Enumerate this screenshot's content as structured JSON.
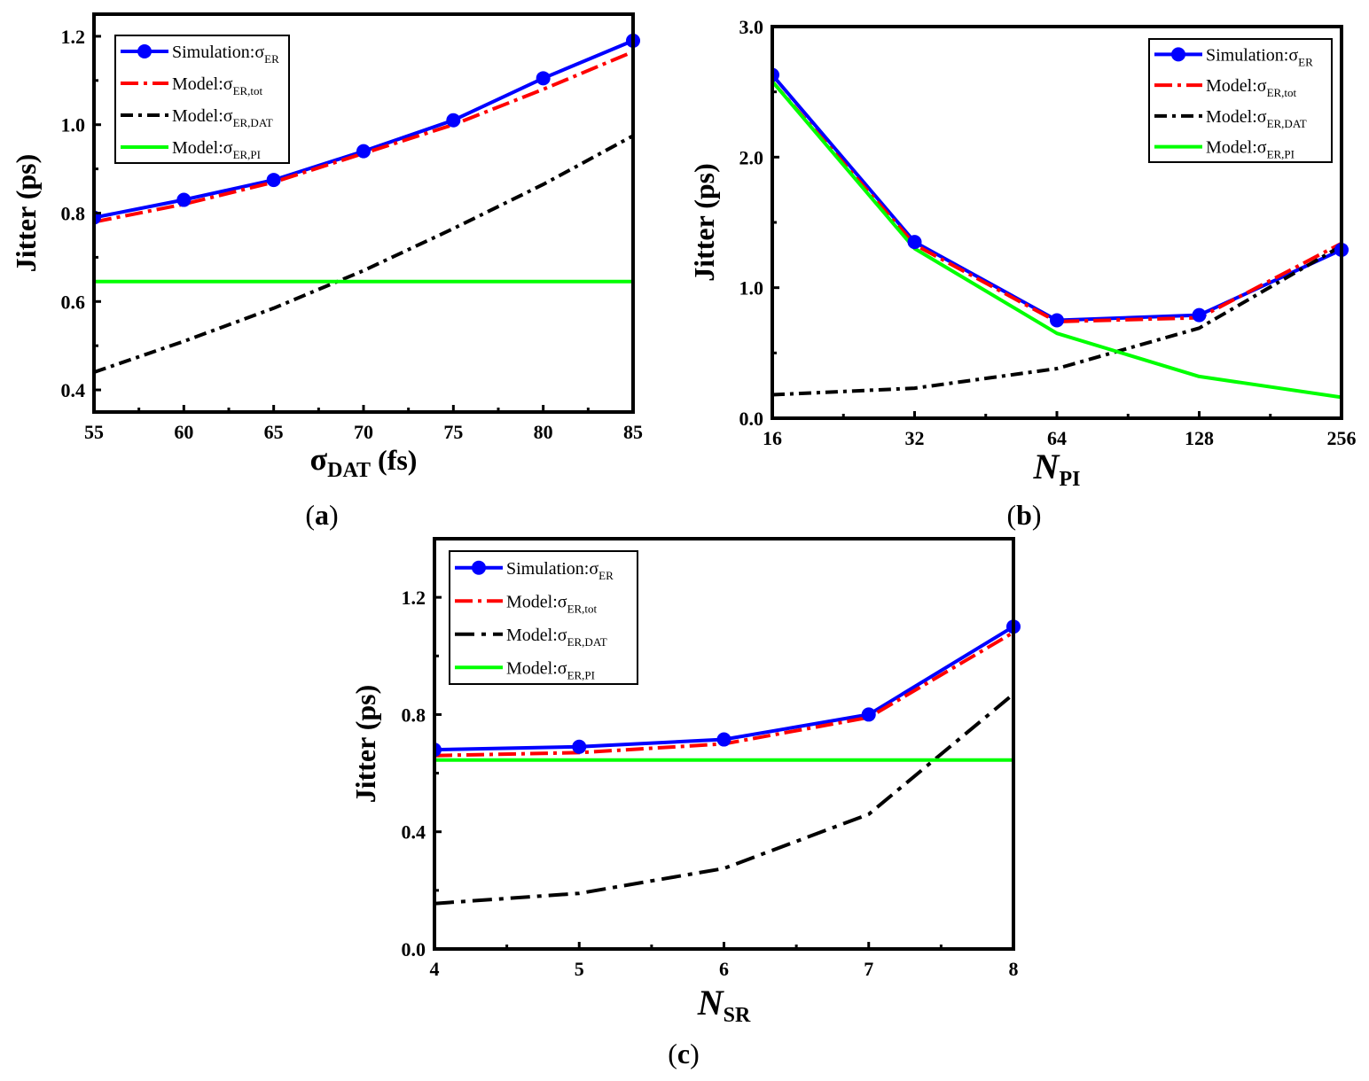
{
  "chart_data": [
    {
      "id": "a",
      "type": "line",
      "panel_label": "(a)",
      "xlabel": "σ",
      "xlabel_sub": "DAT",
      "xlabel_suffix": " (fs)",
      "ylabel": "Jitter (ps)",
      "x_scale": "linear",
      "xlim": [
        55,
        85
      ],
      "ylim": [
        0.35,
        1.25
      ],
      "x_ticks": [
        55,
        60,
        65,
        70,
        75,
        80,
        85
      ],
      "x_tick_labels": [
        "55",
        "60",
        "65",
        "70",
        "75",
        "80",
        "85"
      ],
      "y_ticks": [
        0.4,
        0.6,
        0.8,
        1.0,
        1.2
      ],
      "y_tick_labels": [
        "0.4",
        "0.6",
        "0.8",
        "1.0",
        "1.2"
      ],
      "legend_position": "top-left",
      "series": [
        {
          "name": "Simulation:σ",
          "sub": "ER",
          "color": "#0000ff",
          "style": "solid-marker",
          "x": [
            55,
            60,
            65,
            70,
            75,
            80,
            85
          ],
          "values": [
            0.79,
            0.83,
            0.875,
            0.94,
            1.01,
            1.105,
            1.19
          ]
        },
        {
          "name": "Model:σ",
          "sub": "ER,tot",
          "color": "#ff0000",
          "style": "dashdot-red",
          "x": [
            55,
            60,
            65,
            70,
            75,
            80,
            85
          ],
          "values": [
            0.78,
            0.82,
            0.87,
            0.935,
            1.0,
            1.08,
            1.165
          ]
        },
        {
          "name": "Model:σ",
          "sub": "ER,DAT",
          "color": "#000000",
          "style": "dashdot-black",
          "x": [
            55,
            60,
            65,
            70,
            75,
            80,
            85
          ],
          "values": [
            0.44,
            0.51,
            0.585,
            0.67,
            0.765,
            0.865,
            0.975
          ]
        },
        {
          "name": "Model:σ",
          "sub": "ER,PI",
          "color": "#00ff00",
          "style": "solid",
          "x": [
            55,
            85
          ],
          "values": [
            0.645,
            0.645
          ]
        }
      ]
    },
    {
      "id": "b",
      "type": "line",
      "panel_label": "(b)",
      "xlabel": "N",
      "xlabel_sub": "PI",
      "xlabel_suffix": "",
      "ylabel": "Jitter (ps)",
      "x_scale": "log2",
      "xlim": [
        16,
        256
      ],
      "ylim": [
        0.0,
        3.0
      ],
      "x_ticks": [
        16,
        32,
        64,
        128,
        256
      ],
      "x_tick_labels": [
        "16",
        "32",
        "64",
        "128",
        "256"
      ],
      "y_ticks": [
        0.0,
        1.0,
        2.0,
        3.0
      ],
      "y_tick_labels": [
        "0.0",
        "1.0",
        "2.0",
        "3.0"
      ],
      "legend_position": "top-right",
      "series": [
        {
          "name": "Simulation:σ",
          "sub": "ER",
          "color": "#0000ff",
          "style": "solid-marker",
          "x": [
            16,
            32,
            64,
            128,
            256
          ],
          "values": [
            2.63,
            1.35,
            0.75,
            0.79,
            1.29
          ]
        },
        {
          "name": "Model:σ",
          "sub": "ER,tot",
          "color": "#ff0000",
          "style": "dashdot-red",
          "x": [
            16,
            32,
            64,
            128,
            256
          ],
          "values": [
            2.58,
            1.33,
            0.74,
            0.77,
            1.34
          ]
        },
        {
          "name": "Model:σ",
          "sub": "ER,DAT",
          "color": "#000000",
          "style": "dashdot-black",
          "x": [
            16,
            32,
            64,
            128,
            256
          ],
          "values": [
            0.18,
            0.23,
            0.38,
            0.69,
            1.32
          ]
        },
        {
          "name": "Model:σ",
          "sub": "ER,PI",
          "color": "#00ff00",
          "style": "solid",
          "x": [
            16,
            32,
            64,
            128,
            256
          ],
          "values": [
            2.58,
            1.3,
            0.65,
            0.32,
            0.16
          ]
        }
      ]
    },
    {
      "id": "c",
      "type": "line",
      "panel_label": "(c)",
      "xlabel": "N",
      "xlabel_sub": "SR",
      "xlabel_suffix": "",
      "ylabel": "Jitter (ps)",
      "x_scale": "linear",
      "xlim": [
        4,
        8
      ],
      "ylim": [
        0.0,
        1.4
      ],
      "x_ticks": [
        4,
        5,
        6,
        7,
        8
      ],
      "x_tick_labels": [
        "4",
        "5",
        "6",
        "7",
        "8"
      ],
      "y_ticks": [
        0.0,
        0.4,
        0.8,
        1.2
      ],
      "y_tick_labels": [
        "0.0",
        "0.4",
        "0.8",
        "1.2"
      ],
      "legend_position": "top-left",
      "series": [
        {
          "name": "Simulation:σ",
          "sub": "ER",
          "color": "#0000ff",
          "style": "solid-marker",
          "x": [
            4,
            5,
            6,
            7,
            8
          ],
          "values": [
            0.68,
            0.69,
            0.715,
            0.8,
            1.1
          ]
        },
        {
          "name": "Model:σ",
          "sub": "ER,tot",
          "color": "#ff0000",
          "style": "dashdot-red",
          "x": [
            4,
            5,
            6,
            7,
            8
          ],
          "values": [
            0.66,
            0.67,
            0.7,
            0.79,
            1.08
          ]
        },
        {
          "name": "Model:σ",
          "sub": "ER,DAT",
          "color": "#000000",
          "style": "dashdot-black-long",
          "x": [
            4,
            5,
            6,
            7,
            8
          ],
          "values": [
            0.155,
            0.19,
            0.275,
            0.46,
            0.87
          ]
        },
        {
          "name": "Model:σ",
          "sub": "ER,PI",
          "color": "#00ff00",
          "style": "solid",
          "x": [
            4,
            8
          ],
          "values": [
            0.645,
            0.645
          ]
        }
      ]
    }
  ]
}
